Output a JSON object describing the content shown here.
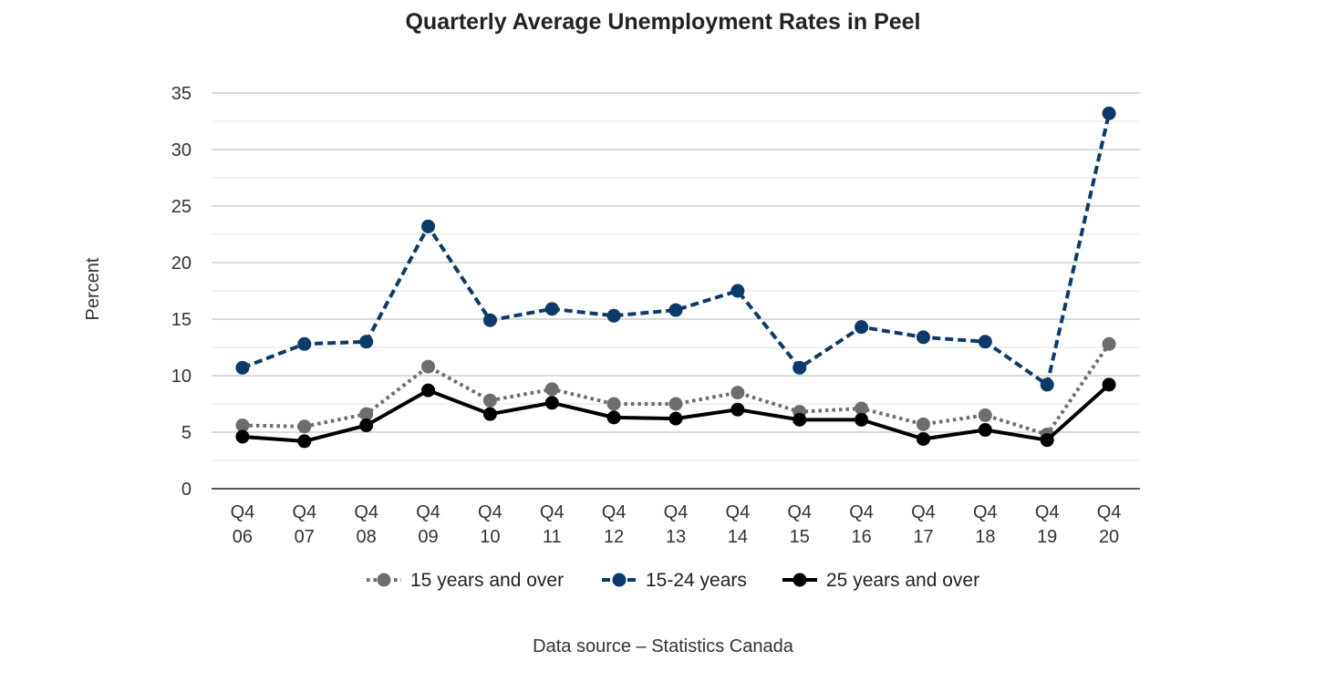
{
  "chart_data": {
    "type": "line",
    "title": "Quarterly Average Unemployment Rates in Peel",
    "ylabel": "Percent",
    "xlabel": "",
    "ylim": [
      0,
      35
    ],
    "yticks": [
      0,
      5,
      10,
      15,
      20,
      25,
      30,
      35
    ],
    "grid": true,
    "legend_position": "bottom",
    "categories": [
      [
        "Q4",
        "06"
      ],
      [
        "Q4",
        "07"
      ],
      [
        "Q4",
        "08"
      ],
      [
        "Q4",
        "09"
      ],
      [
        "Q4",
        "10"
      ],
      [
        "Q4",
        "11"
      ],
      [
        "Q4",
        "12"
      ],
      [
        "Q4",
        "13"
      ],
      [
        "Q4",
        "14"
      ],
      [
        "Q4",
        "15"
      ],
      [
        "Q4",
        "16"
      ],
      [
        "Q4",
        "17"
      ],
      [
        "Q4",
        "18"
      ],
      [
        "Q4",
        "19"
      ],
      [
        "Q4",
        "20"
      ]
    ],
    "series": [
      {
        "name": "15 years and over",
        "color": "#6d6d6d",
        "line_style": "dotted",
        "values": [
          5.6,
          5.5,
          6.6,
          10.8,
          7.8,
          8.8,
          7.5,
          7.5,
          8.5,
          6.8,
          7.1,
          5.7,
          6.5,
          4.8,
          12.8
        ]
      },
      {
        "name": "15-24 years",
        "color": "#0b3a6b",
        "line_style": "dashed",
        "values": [
          10.7,
          12.8,
          13.0,
          23.2,
          14.9,
          15.9,
          15.3,
          15.8,
          17.5,
          10.7,
          14.3,
          13.4,
          13.0,
          9.2,
          33.2
        ]
      },
      {
        "name": "25 years and over",
        "color": "#000000",
        "line_style": "solid",
        "values": [
          4.6,
          4.2,
          5.6,
          8.7,
          6.6,
          7.6,
          6.3,
          6.2,
          7.0,
          6.1,
          6.1,
          4.4,
          5.2,
          4.3,
          9.2
        ]
      }
    ],
    "source_note": "Data source – Statistics Canada"
  }
}
